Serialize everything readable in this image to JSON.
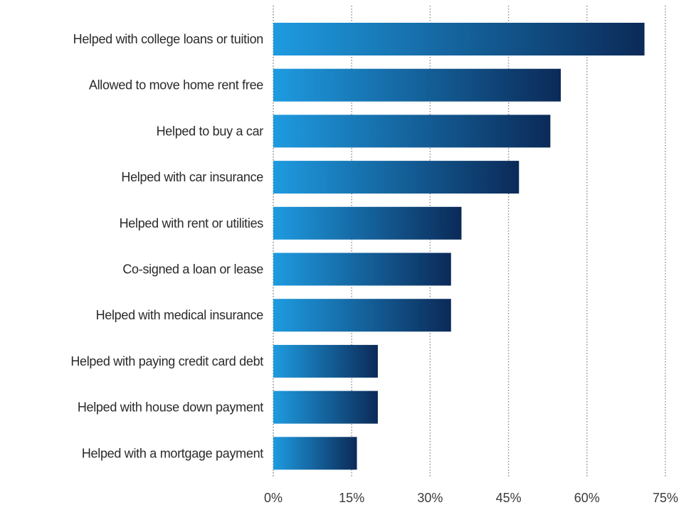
{
  "chart_data": {
    "type": "bar",
    "orientation": "horizontal",
    "title": "",
    "xlabel": "",
    "ylabel": "",
    "categories": [
      "Helped with college loans or tuition",
      "Allowed to move home rent free",
      "Helped to buy a car",
      "Helped with car insurance",
      "Helped with rent or utilities",
      "Co-signed a loan or lease",
      "Helped with medical insurance",
      "Helped with paying credit card debt",
      "Helped with house down payment",
      "Helped with a mortgage payment"
    ],
    "values": [
      71,
      55,
      53,
      47,
      36,
      34,
      34,
      20,
      20,
      16
    ],
    "xlim": [
      0,
      75
    ],
    "x_ticks": [
      0,
      15,
      30,
      45,
      60,
      75
    ],
    "x_tick_labels": [
      "0%",
      "15%",
      "30%",
      "45%",
      "60%",
      "75%"
    ],
    "grid": true,
    "legend": "none",
    "colors": {
      "bar_start": "#1e9be0",
      "bar_end": "#0b2a58",
      "grid": "#8a8a8a",
      "text": "#2a2a2a"
    }
  }
}
